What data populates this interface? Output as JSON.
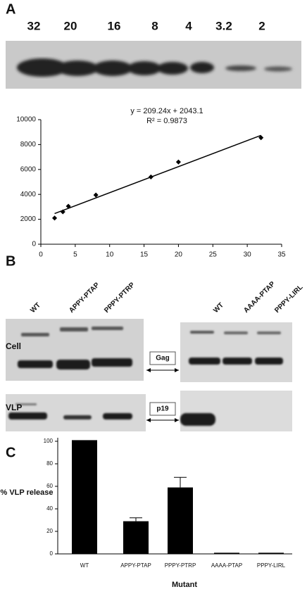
{
  "panel_labels": [
    "A",
    "B",
    "C"
  ],
  "blot_a": {
    "lanes": [
      "32",
      "20",
      "16",
      "8",
      "4",
      "3.2",
      "2"
    ]
  },
  "blot_b": {
    "left_lanes": [
      "WT",
      "APPY-PTAP",
      "PPPY-PTRP"
    ],
    "right_lanes": [
      "WT",
      "AAAA-PTAP",
      "PPPY-LIRL"
    ],
    "rows": [
      "Cell",
      "VLP"
    ],
    "markers": [
      "Gag",
      "p19"
    ]
  },
  "chart_data": [
    {
      "type": "scatter",
      "x": [
        2,
        3.2,
        4,
        8,
        16,
        20,
        32
      ],
      "values": [
        2100,
        2600,
        3050,
        3950,
        5400,
        6600,
        8550
      ],
      "color": "#000000",
      "trendline": {
        "label": "y = 209.24x + 2043.1",
        "slope": 209.24,
        "intercept": 2043.1
      },
      "r2_label": "R² = 0.9873",
      "xlim": [
        0,
        35
      ],
      "xticks": [
        0,
        5,
        10,
        15,
        20,
        25,
        30,
        35
      ],
      "ylim": [
        0,
        10000
      ],
      "yticks": [
        0,
        2000,
        4000,
        6000,
        8000,
        10000
      ]
    },
    {
      "type": "bar",
      "categories": [
        "WT",
        "APPY-PTAP",
        "PPPY-PTRP",
        "AAAA-PTAP",
        "PPPY-LIRL"
      ],
      "values": [
        101,
        29,
        59,
        1,
        1
      ],
      "errors": [
        null,
        3,
        9,
        null,
        null
      ],
      "color": "#000000",
      "y_label": "% VLP release",
      "x_label": "Mutant",
      "ylim": [
        0,
        100
      ],
      "yticks": [
        0,
        20,
        40,
        60,
        80,
        100
      ]
    }
  ]
}
